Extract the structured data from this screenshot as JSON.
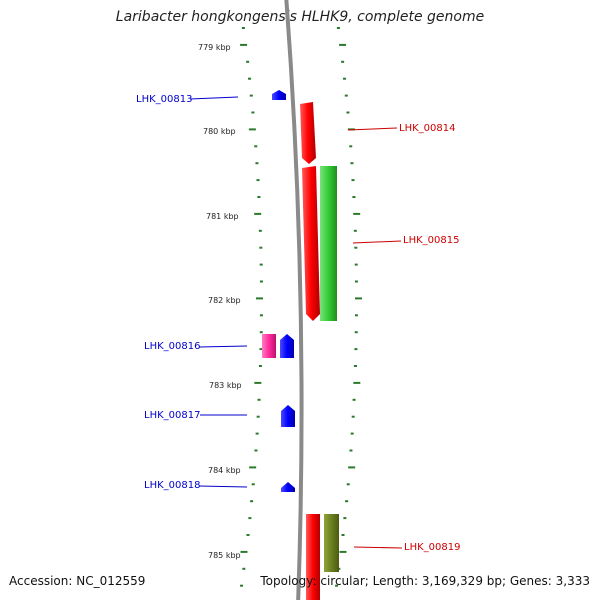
{
  "title": "Laribacter hongkongensis HLHK9, complete genome",
  "footer": {
    "accession": "Accession: NC_012559",
    "topology": "Topology: circular; Length: 3,169,329 bp; Genes: 3,333"
  },
  "scale_ticks": [
    "779 kbp",
    "780 kbp",
    "781 kbp",
    "782 kbp",
    "783 kbp",
    "784 kbp",
    "785 kbp"
  ],
  "genes_left": [
    {
      "label": "LHK_00813",
      "color": "#0000cc"
    },
    {
      "label": "LHK_00816",
      "color": "#0000cc"
    },
    {
      "label": "LHK_00817",
      "color": "#0000cc"
    },
    {
      "label": "LHK_00818",
      "color": "#0000cc"
    }
  ],
  "genes_right": [
    {
      "label": "LHK_00814",
      "color": "#cc0000"
    },
    {
      "label": "LHK_00815",
      "color": "#cc0000"
    },
    {
      "label": "LHK_00819",
      "color": "#cc0000"
    }
  ],
  "colors": {
    "backbone": "#8a8a8a",
    "tick_green": "#2a7a2a",
    "forward_gene": "#ff0000",
    "reverse_gene": "#0000ff",
    "cog_green": "#33cc33",
    "cog_pink": "#ff2b9b",
    "cog_olive": "#6b7f1f"
  }
}
